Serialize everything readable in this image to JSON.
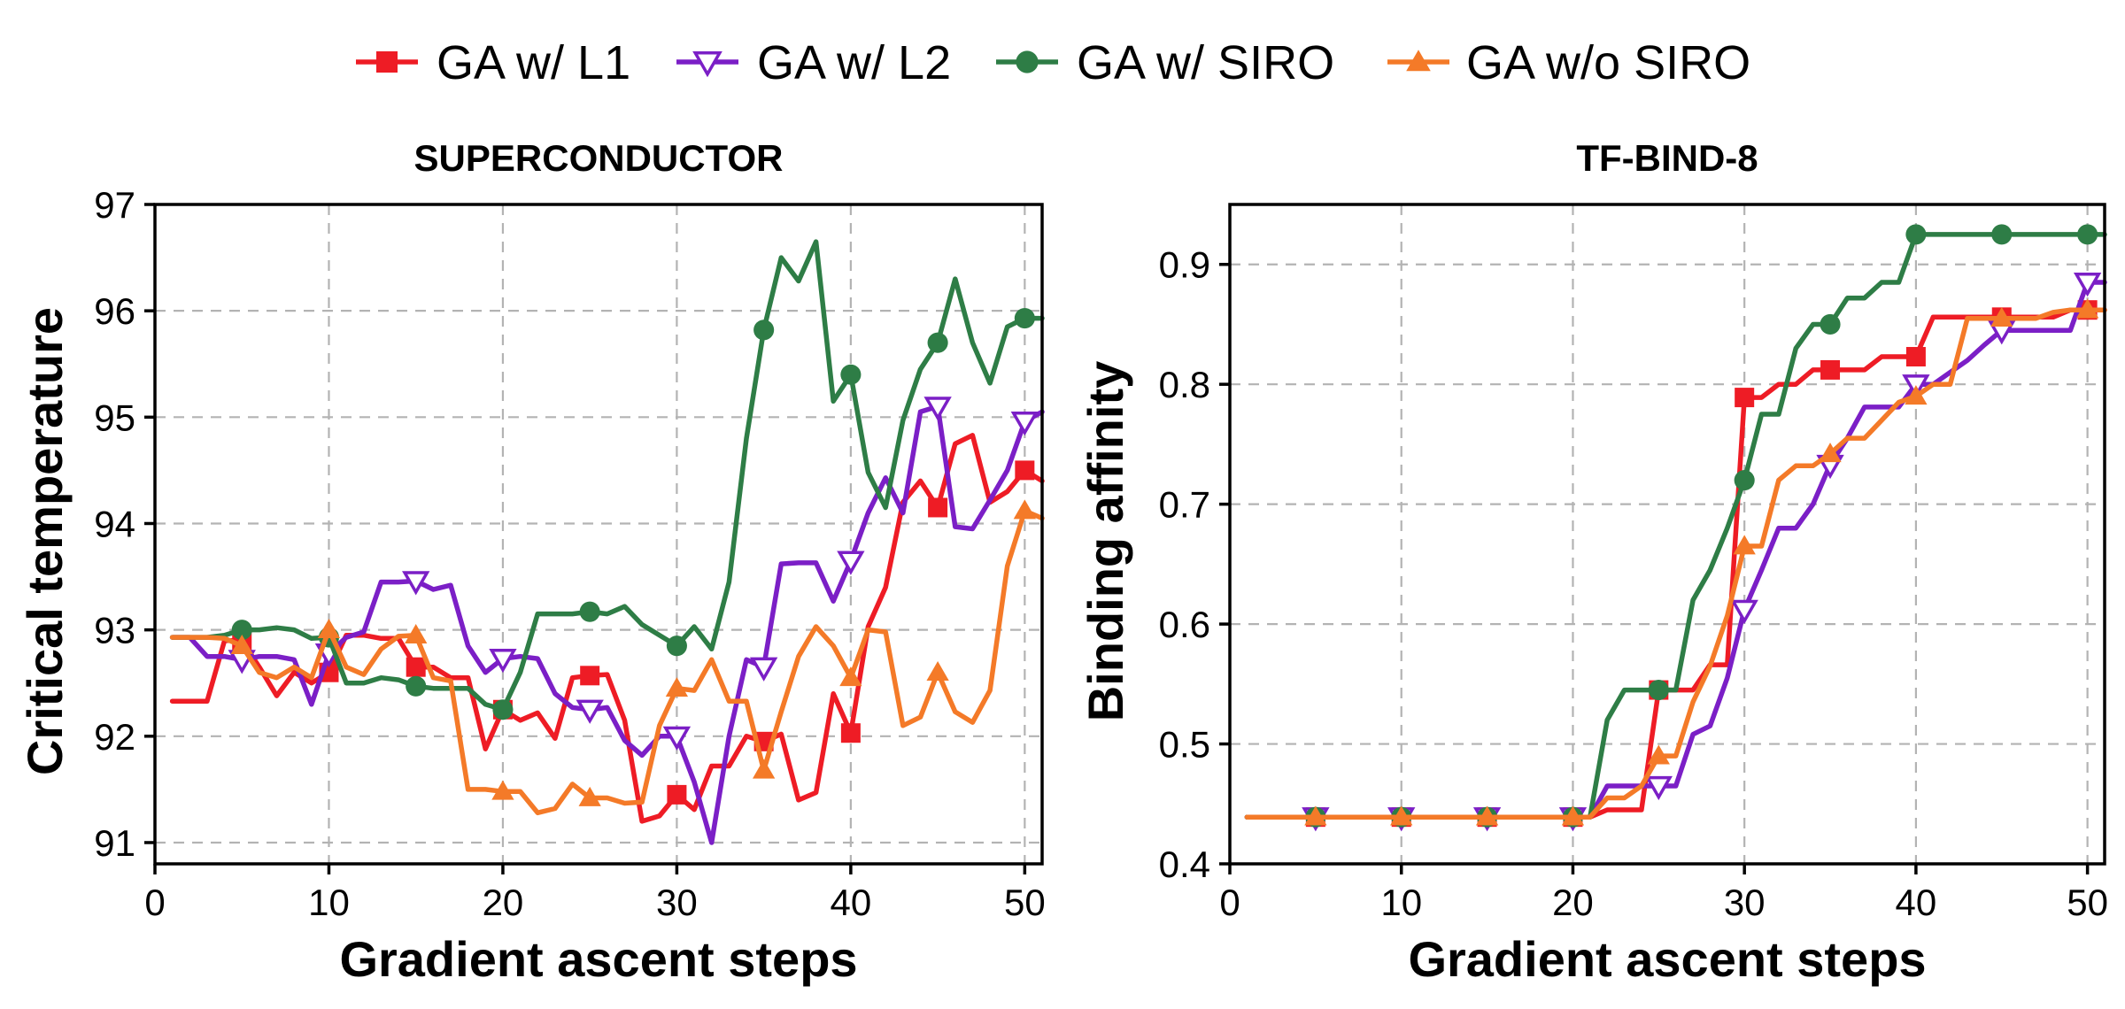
{
  "legend": [
    {
      "label": "GA w/ L1",
      "color": "#ee1c25",
      "marker": "square"
    },
    {
      "label": "GA w/ L2",
      "color": "#7b1fc6",
      "marker": "triangle-down-open"
    },
    {
      "label": "GA w/ SIRO",
      "color": "#2e7d46",
      "marker": "circle"
    },
    {
      "label": "GA w/o SIRO",
      "color": "#f47a28",
      "marker": "triangle-up"
    }
  ],
  "chart_data": [
    {
      "type": "line",
      "title": "SUPERCONDUCTOR",
      "xlabel": "Gradient ascent steps",
      "ylabel": "Critical temperature",
      "xlim": [
        0,
        51
      ],
      "ylim": [
        90.8,
        97
      ],
      "xticks": [
        0,
        10,
        20,
        30,
        40,
        50
      ],
      "yticks": [
        91,
        92,
        93,
        94,
        95,
        96,
        97
      ],
      "grid": true,
      "legend_position": "top",
      "marker_every": 5,
      "x": [
        1,
        2,
        3,
        4,
        5,
        6,
        7,
        8,
        9,
        10,
        11,
        12,
        13,
        14,
        15,
        16,
        17,
        18,
        19,
        20,
        21,
        22,
        23,
        24,
        25,
        26,
        27,
        28,
        29,
        30,
        31,
        32,
        33,
        34,
        35,
        36,
        37,
        38,
        39,
        40,
        41,
        42,
        43,
        44,
        45,
        46,
        47,
        48,
        49,
        50,
        51
      ],
      "series": [
        {
          "name": "GA w/ L1",
          "values": [
            92.33,
            92.33,
            92.33,
            92.9,
            92.9,
            92.65,
            92.38,
            92.6,
            92.5,
            92.6,
            92.95,
            92.95,
            92.92,
            92.92,
            92.65,
            92.65,
            92.55,
            92.55,
            91.88,
            92.25,
            92.15,
            92.22,
            91.98,
            92.55,
            92.57,
            92.58,
            92.15,
            91.2,
            91.25,
            91.45,
            91.31,
            91.72,
            91.72,
            92.0,
            91.95,
            92.02,
            91.4,
            91.47,
            92.4,
            92.03,
            93.03,
            93.4,
            94.2,
            94.4,
            94.15,
            94.75,
            94.83,
            94.2,
            94.3,
            94.5,
            94.4
          ]
        },
        {
          "name": "GA w/ L2",
          "values": [
            92.93,
            92.93,
            92.75,
            92.75,
            92.72,
            92.75,
            92.75,
            92.72,
            92.3,
            92.78,
            92.93,
            92.98,
            93.45,
            93.45,
            93.46,
            93.38,
            93.42,
            92.85,
            92.6,
            92.73,
            92.75,
            92.73,
            92.4,
            92.27,
            92.25,
            92.27,
            91.96,
            91.82,
            92.0,
            92.0,
            91.57,
            91.0,
            92.0,
            92.72,
            92.65,
            93.62,
            93.63,
            93.63,
            93.27,
            93.65,
            94.1,
            94.43,
            94.1,
            95.05,
            95.1,
            93.97,
            93.95,
            94.22,
            94.5,
            94.96,
            95.05
          ]
        },
        {
          "name": "GA w/ SIRO",
          "values": [
            92.93,
            92.93,
            92.93,
            92.95,
            93.0,
            93.0,
            93.02,
            93.0,
            92.92,
            92.93,
            92.5,
            92.5,
            92.55,
            92.53,
            92.47,
            92.45,
            92.45,
            92.45,
            92.3,
            92.25,
            92.6,
            93.15,
            93.15,
            93.15,
            93.17,
            93.15,
            93.22,
            93.05,
            92.95,
            92.85,
            93.03,
            92.82,
            93.45,
            94.8,
            95.82,
            96.5,
            96.28,
            96.65,
            95.15,
            95.4,
            94.48,
            94.15,
            94.97,
            95.45,
            95.7,
            96.3,
            95.7,
            95.32,
            95.85,
            95.93,
            95.93
          ]
        },
        {
          "name": "GA w/o SIRO",
          "values": [
            92.93,
            92.93,
            92.93,
            92.92,
            92.85,
            92.6,
            92.55,
            92.65,
            92.55,
            93.0,
            92.65,
            92.58,
            92.82,
            92.94,
            92.95,
            92.55,
            92.52,
            91.5,
            91.5,
            91.48,
            91.48,
            91.28,
            91.32,
            91.55,
            91.42,
            91.42,
            91.37,
            91.38,
            92.1,
            92.45,
            92.43,
            92.72,
            92.33,
            92.33,
            91.68,
            92.23,
            92.75,
            93.03,
            92.85,
            92.55,
            93.0,
            92.98,
            92.1,
            92.18,
            92.6,
            92.23,
            92.13,
            92.43,
            93.6,
            94.12,
            94.05
          ]
        }
      ]
    },
    {
      "type": "line",
      "title": "TF-BIND-8",
      "xlabel": "Gradient ascent steps",
      "ylabel": "Binding affinity",
      "xlim": [
        0,
        51
      ],
      "ylim": [
        0.4,
        0.95
      ],
      "xticks": [
        0,
        10,
        20,
        30,
        40,
        50
      ],
      "yticks": [
        0.4,
        0.5,
        0.6,
        0.7,
        0.8,
        0.9
      ],
      "grid": true,
      "legend_position": "top",
      "marker_every": 5,
      "x": [
        1,
        2,
        3,
        4,
        5,
        6,
        7,
        8,
        9,
        10,
        11,
        12,
        13,
        14,
        15,
        16,
        17,
        18,
        19,
        20,
        21,
        22,
        23,
        24,
        25,
        26,
        27,
        28,
        29,
        30,
        31,
        32,
        33,
        34,
        35,
        36,
        37,
        38,
        39,
        40,
        41,
        42,
        43,
        44,
        45,
        46,
        47,
        48,
        49,
        50,
        51
      ],
      "series": [
        {
          "name": "GA w/ L1",
          "values": [
            0.439,
            0.439,
            0.439,
            0.439,
            0.439,
            0.439,
            0.439,
            0.439,
            0.439,
            0.439,
            0.439,
            0.439,
            0.439,
            0.439,
            0.439,
            0.439,
            0.439,
            0.439,
            0.439,
            0.439,
            0.439,
            0.445,
            0.445,
            0.445,
            0.545,
            0.545,
            0.545,
            0.566,
            0.566,
            0.789,
            0.789,
            0.8,
            0.8,
            0.812,
            0.812,
            0.812,
            0.812,
            0.823,
            0.823,
            0.823,
            0.856,
            0.856,
            0.856,
            0.856,
            0.856,
            0.856,
            0.856,
            0.856,
            0.862,
            0.862,
            0.862
          ]
        },
        {
          "name": "GA w/ L2",
          "values": [
            0.439,
            0.439,
            0.439,
            0.439,
            0.439,
            0.439,
            0.439,
            0.439,
            0.439,
            0.439,
            0.439,
            0.439,
            0.439,
            0.439,
            0.439,
            0.439,
            0.439,
            0.439,
            0.439,
            0.439,
            0.439,
            0.465,
            0.465,
            0.465,
            0.465,
            0.465,
            0.508,
            0.515,
            0.555,
            0.612,
            0.645,
            0.68,
            0.68,
            0.7,
            0.733,
            0.755,
            0.781,
            0.781,
            0.781,
            0.8,
            0.8,
            0.81,
            0.82,
            0.833,
            0.845,
            0.845,
            0.845,
            0.845,
            0.845,
            0.885,
            0.885
          ]
        },
        {
          "name": "GA w/ SIRO",
          "values": [
            0.439,
            0.439,
            0.439,
            0.439,
            0.439,
            0.439,
            0.439,
            0.439,
            0.439,
            0.439,
            0.439,
            0.439,
            0.439,
            0.439,
            0.439,
            0.439,
            0.439,
            0.439,
            0.439,
            0.439,
            0.439,
            0.52,
            0.545,
            0.545,
            0.545,
            0.545,
            0.62,
            0.645,
            0.68,
            0.72,
            0.775,
            0.775,
            0.83,
            0.85,
            0.85,
            0.872,
            0.872,
            0.885,
            0.885,
            0.925,
            0.925,
            0.925,
            0.925,
            0.925,
            0.925,
            0.925,
            0.925,
            0.925,
            0.925,
            0.925,
            0.925
          ]
        },
        {
          "name": "GA w/o SIRO",
          "values": [
            0.439,
            0.439,
            0.439,
            0.439,
            0.439,
            0.439,
            0.439,
            0.439,
            0.439,
            0.439,
            0.439,
            0.439,
            0.439,
            0.439,
            0.439,
            0.439,
            0.439,
            0.439,
            0.439,
            0.439,
            0.439,
            0.455,
            0.455,
            0.465,
            0.49,
            0.49,
            0.535,
            0.565,
            0.607,
            0.665,
            0.665,
            0.72,
            0.732,
            0.732,
            0.742,
            0.755,
            0.755,
            0.77,
            0.785,
            0.79,
            0.8,
            0.8,
            0.855,
            0.855,
            0.855,
            0.855,
            0.855,
            0.86,
            0.862,
            0.862,
            0.862
          ]
        }
      ]
    }
  ]
}
